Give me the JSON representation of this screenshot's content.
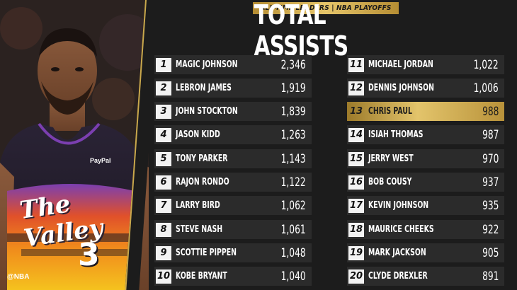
{
  "header": {
    "tag": "ALL-TIME LEADERS | NBA PLAYOFFS",
    "title": "TOTAL ASSISTS"
  },
  "photo": {
    "jersey_brand": "PayPal",
    "jersey_text": "The Valley",
    "jersey_number": "3",
    "handle": "@NBA"
  },
  "colors": {
    "gold": "#c9a84c",
    "highlight": "#e3c46b",
    "row_bg": "#2b2b2b",
    "bg": "#1c1c1c"
  },
  "leaders": [
    {
      "rank": "1",
      "name": "MAGIC JOHNSON",
      "value": "2,346"
    },
    {
      "rank": "2",
      "name": "LEBRON JAMES",
      "value": "1,919"
    },
    {
      "rank": "3",
      "name": "JOHN STOCKTON",
      "value": "1,839"
    },
    {
      "rank": "4",
      "name": "JASON KIDD",
      "value": "1,263"
    },
    {
      "rank": "5",
      "name": "TONY PARKER",
      "value": "1,143"
    },
    {
      "rank": "6",
      "name": "RAJON RONDO",
      "value": "1,122"
    },
    {
      "rank": "7",
      "name": "LARRY BIRD",
      "value": "1,062"
    },
    {
      "rank": "8",
      "name": "STEVE NASH",
      "value": "1,061"
    },
    {
      "rank": "9",
      "name": "SCOTTIE PIPPEN",
      "value": "1,048"
    },
    {
      "rank": "10",
      "name": "KOBE BRYANT",
      "value": "1,040"
    },
    {
      "rank": "11",
      "name": "MICHAEL JORDAN",
      "value": "1,022"
    },
    {
      "rank": "12",
      "name": "DENNIS JOHNSON",
      "value": "1,006"
    },
    {
      "rank": "13",
      "name": "CHRIS PAUL",
      "value": "988",
      "highlight": true
    },
    {
      "rank": "14",
      "name": "ISIAH THOMAS",
      "value": "987"
    },
    {
      "rank": "15",
      "name": "JERRY WEST",
      "value": "970"
    },
    {
      "rank": "16",
      "name": "BOB COUSY",
      "value": "937"
    },
    {
      "rank": "17",
      "name": "KEVIN JOHNSON",
      "value": "935"
    },
    {
      "rank": "18",
      "name": "MAURICE CHEEKS",
      "value": "922"
    },
    {
      "rank": "19",
      "name": "MARK JACKSON",
      "value": "905"
    },
    {
      "rank": "20",
      "name": "CLYDE DREXLER",
      "value": "891"
    }
  ]
}
